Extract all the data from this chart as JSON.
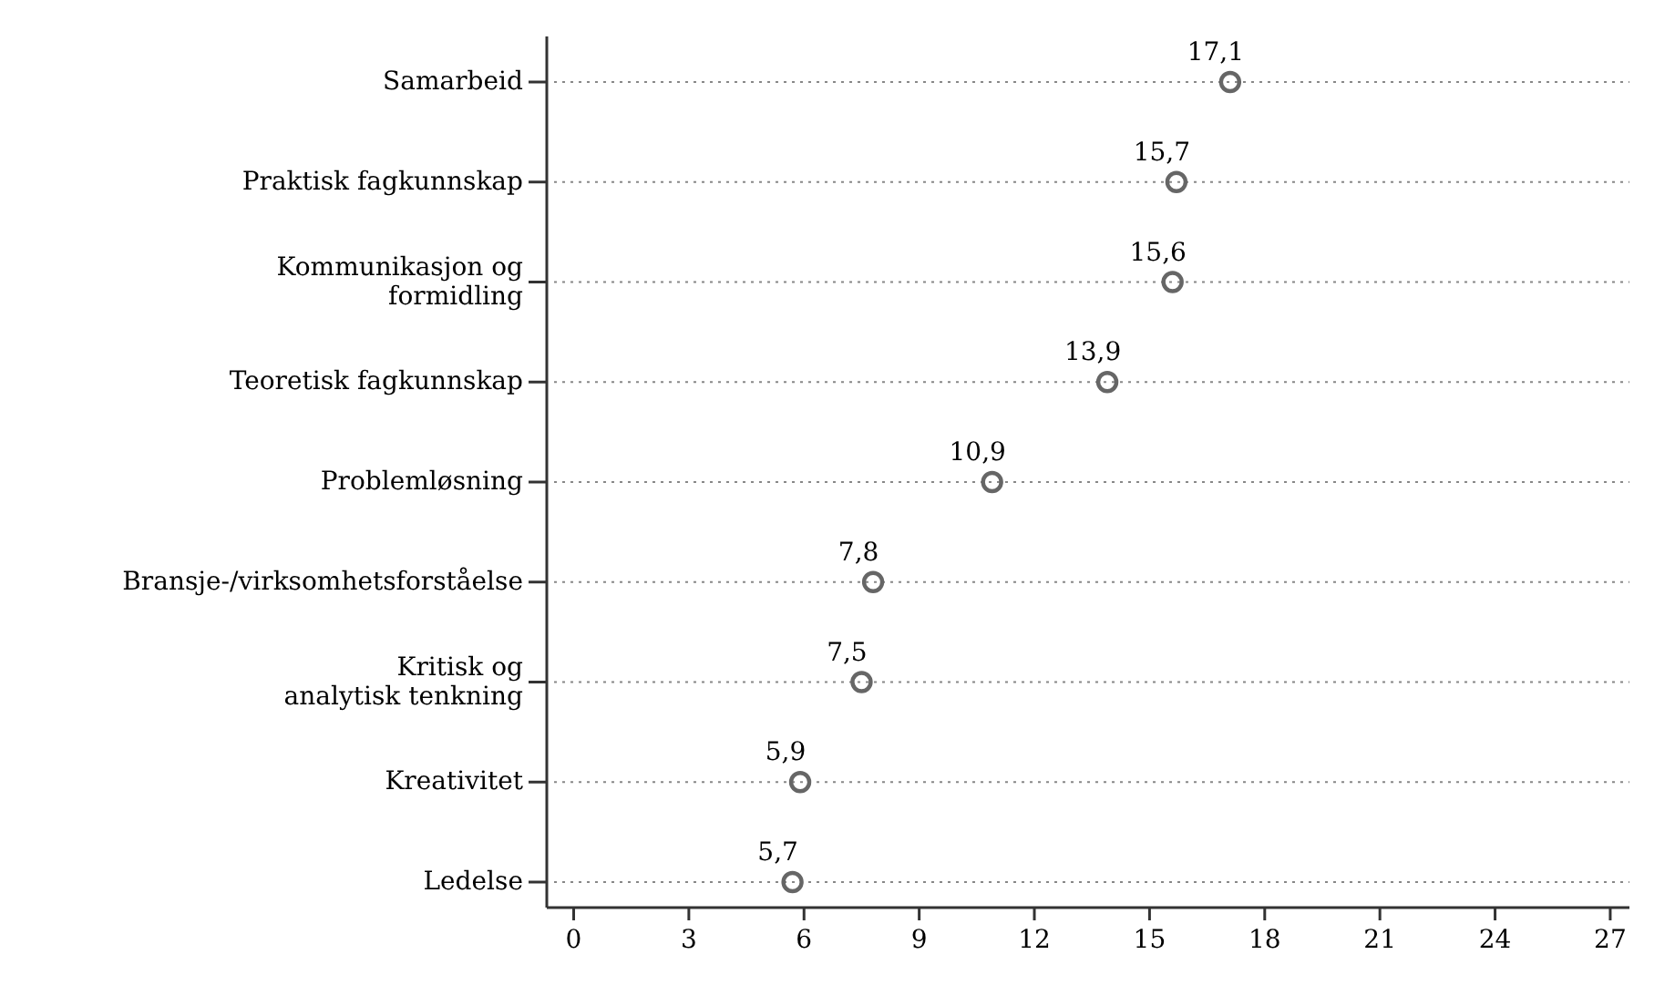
{
  "chart_data": {
    "type": "scatter",
    "orientation": "horizontal",
    "categories": [
      "Samarbeid",
      "Praktisk fagkunnskap",
      "Kommunikasjon og\nformidling",
      "Teoretisk fagkunnskap",
      "Problemløsning",
      "Bransje-/virksomhetsforståelse",
      "Kritisk og\nanalytisk tenkning",
      "Kreativitet",
      "Ledelse"
    ],
    "values": [
      17.1,
      15.7,
      15.6,
      13.9,
      10.9,
      7.8,
      7.5,
      5.9,
      5.7
    ],
    "value_labels": [
      "17,1",
      "15,7",
      "15,6",
      "13,9",
      "10,9",
      "7,8",
      "7,5",
      "5,9",
      "5,7"
    ],
    "color": "#666666",
    "marker": "circle",
    "grid": "y",
    "xlim": [
      -0.7,
      27.5
    ],
    "xticks": [
      0,
      3,
      6,
      9,
      12,
      15,
      18,
      21,
      24,
      27
    ]
  }
}
